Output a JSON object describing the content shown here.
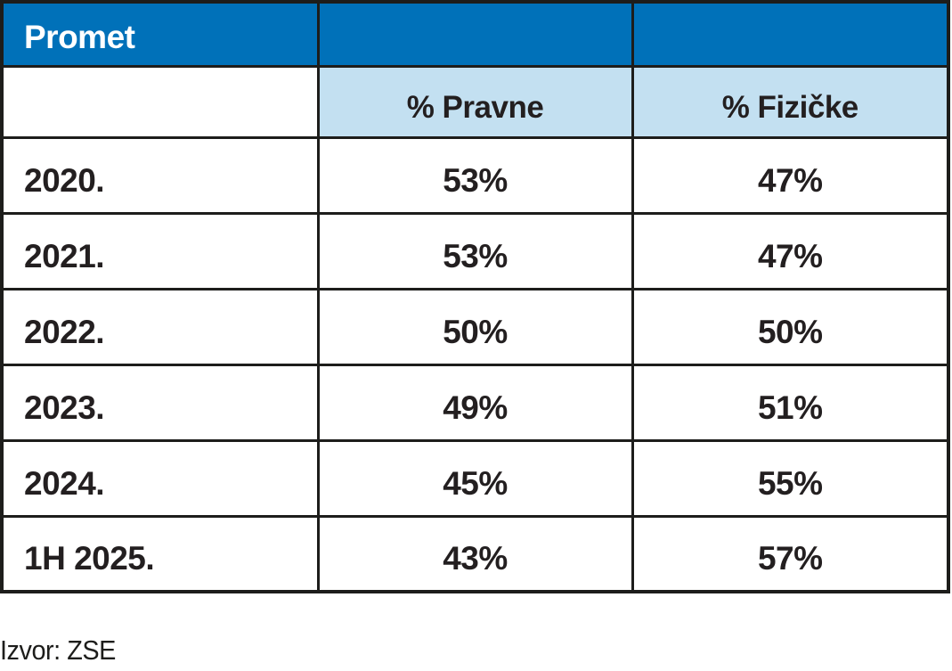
{
  "figure": {
    "title": "Promet",
    "subheaders": {
      "pravne": "% Pravne",
      "fizicke": "% Fizičke"
    },
    "rows": [
      {
        "year": "2020.",
        "pravne": "53%",
        "fizicke": "47%"
      },
      {
        "year": "2021.",
        "pravne": "53%",
        "fizicke": "47%"
      },
      {
        "year": "2022.",
        "pravne": "50%",
        "fizicke": "50%"
      },
      {
        "year": "2023.",
        "pravne": "49%",
        "fizicke": "51%"
      },
      {
        "year": "2024.",
        "pravne": "45%",
        "fizicke": "55%"
      },
      {
        "year": "1H 2025.",
        "pravne": "43%",
        "fizicke": "57%"
      }
    ],
    "source": "Izvor: ZSE"
  },
  "colors": {
    "header_blue": "#0071b9",
    "subheader_light_blue": "#c3e0f1",
    "border_black": "#1d1d1b",
    "text_dark": "#231f20",
    "title_text_white": "#ffffff"
  },
  "chart_data": {
    "type": "table",
    "title": "Promet",
    "categories": [
      "2020.",
      "2021.",
      "2022.",
      "2023.",
      "2024.",
      "1H 2025."
    ],
    "series": [
      {
        "name": "% Pravne",
        "values": [
          53,
          53,
          50,
          49,
          45,
          43
        ]
      },
      {
        "name": "% Fizičke",
        "values": [
          47,
          47,
          50,
          51,
          55,
          57
        ]
      }
    ],
    "unit": "%",
    "source": "Izvor: ZSE",
    "layout": {
      "header_fill": "#0071b9",
      "subheader_fill": "#c3e0f1",
      "grid": true
    }
  }
}
